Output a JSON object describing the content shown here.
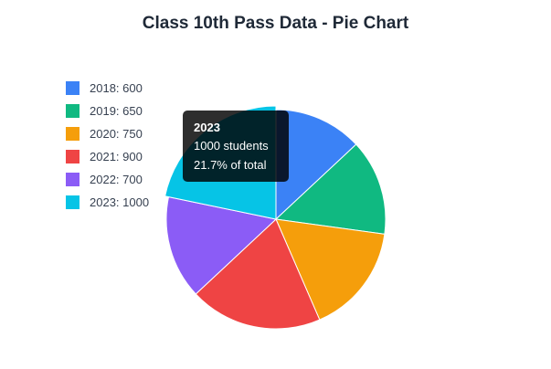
{
  "chart_data": {
    "type": "pie",
    "title": "Class 10th Pass Data - Pie Chart",
    "categories": [
      "2018",
      "2019",
      "2020",
      "2021",
      "2022",
      "2023"
    ],
    "values": [
      600,
      650,
      750,
      900,
      700,
      1000
    ],
    "colors": [
      "#3b82f6",
      "#10b981",
      "#f59e0b",
      "#ef4444",
      "#8b5cf6",
      "#06c4e6"
    ],
    "legend_labels": [
      "2018: 600",
      "2019: 650",
      "2020: 750",
      "2021: 900",
      "2022: 700",
      "2023: 1000"
    ],
    "legend_position": "left",
    "highlighted_index": 5
  },
  "tooltip": {
    "title": "2023",
    "line1": "1000 students",
    "line2": "21.7% of total"
  }
}
